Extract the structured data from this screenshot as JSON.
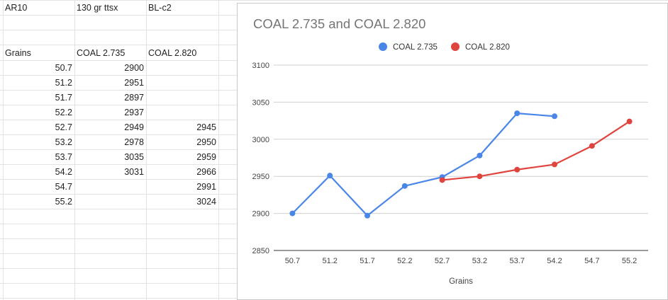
{
  "sheet": {
    "header_row": [
      "AR10",
      "130 gr ttsx",
      "BL-c2"
    ],
    "column_header_row": [
      "Grains",
      "COAL 2.735",
      "COAL 2.820"
    ],
    "rows": [
      [
        "50.7",
        "2900",
        ""
      ],
      [
        "51.2",
        "2951",
        ""
      ],
      [
        "51.7",
        "2897",
        ""
      ],
      [
        "52.2",
        "2937",
        ""
      ],
      [
        "52.7",
        "2949",
        "2945"
      ],
      [
        "53.2",
        "2978",
        "2950"
      ],
      [
        "53.7",
        "3035",
        "2959"
      ],
      [
        "54.2",
        "3031",
        "2966"
      ],
      [
        "54.7",
        "",
        "2991"
      ],
      [
        "55.2",
        "",
        "3024"
      ]
    ]
  },
  "chart_data": {
    "type": "line",
    "title": "COAL 2.735 and COAL 2.820",
    "xlabel": "Grains",
    "ylabel": "",
    "categories": [
      "50.7",
      "51.2",
      "51.7",
      "52.2",
      "52.7",
      "53.2",
      "53.7",
      "54.2",
      "54.7",
      "55.2"
    ],
    "ylim": [
      2850,
      3100
    ],
    "yticks": [
      2850,
      2900,
      2950,
      3000,
      3050,
      3100
    ],
    "grid": true,
    "legend_position": "top",
    "series": [
      {
        "name": "COAL 2.735",
        "color": "#4a86e8",
        "values": [
          2900,
          2951,
          2897,
          2937,
          2949,
          2978,
          3035,
          3031,
          null,
          null
        ]
      },
      {
        "name": "COAL 2.820",
        "color": "#e0443e",
        "values": [
          null,
          null,
          null,
          null,
          2945,
          2950,
          2959,
          2966,
          2991,
          3024
        ]
      }
    ]
  }
}
